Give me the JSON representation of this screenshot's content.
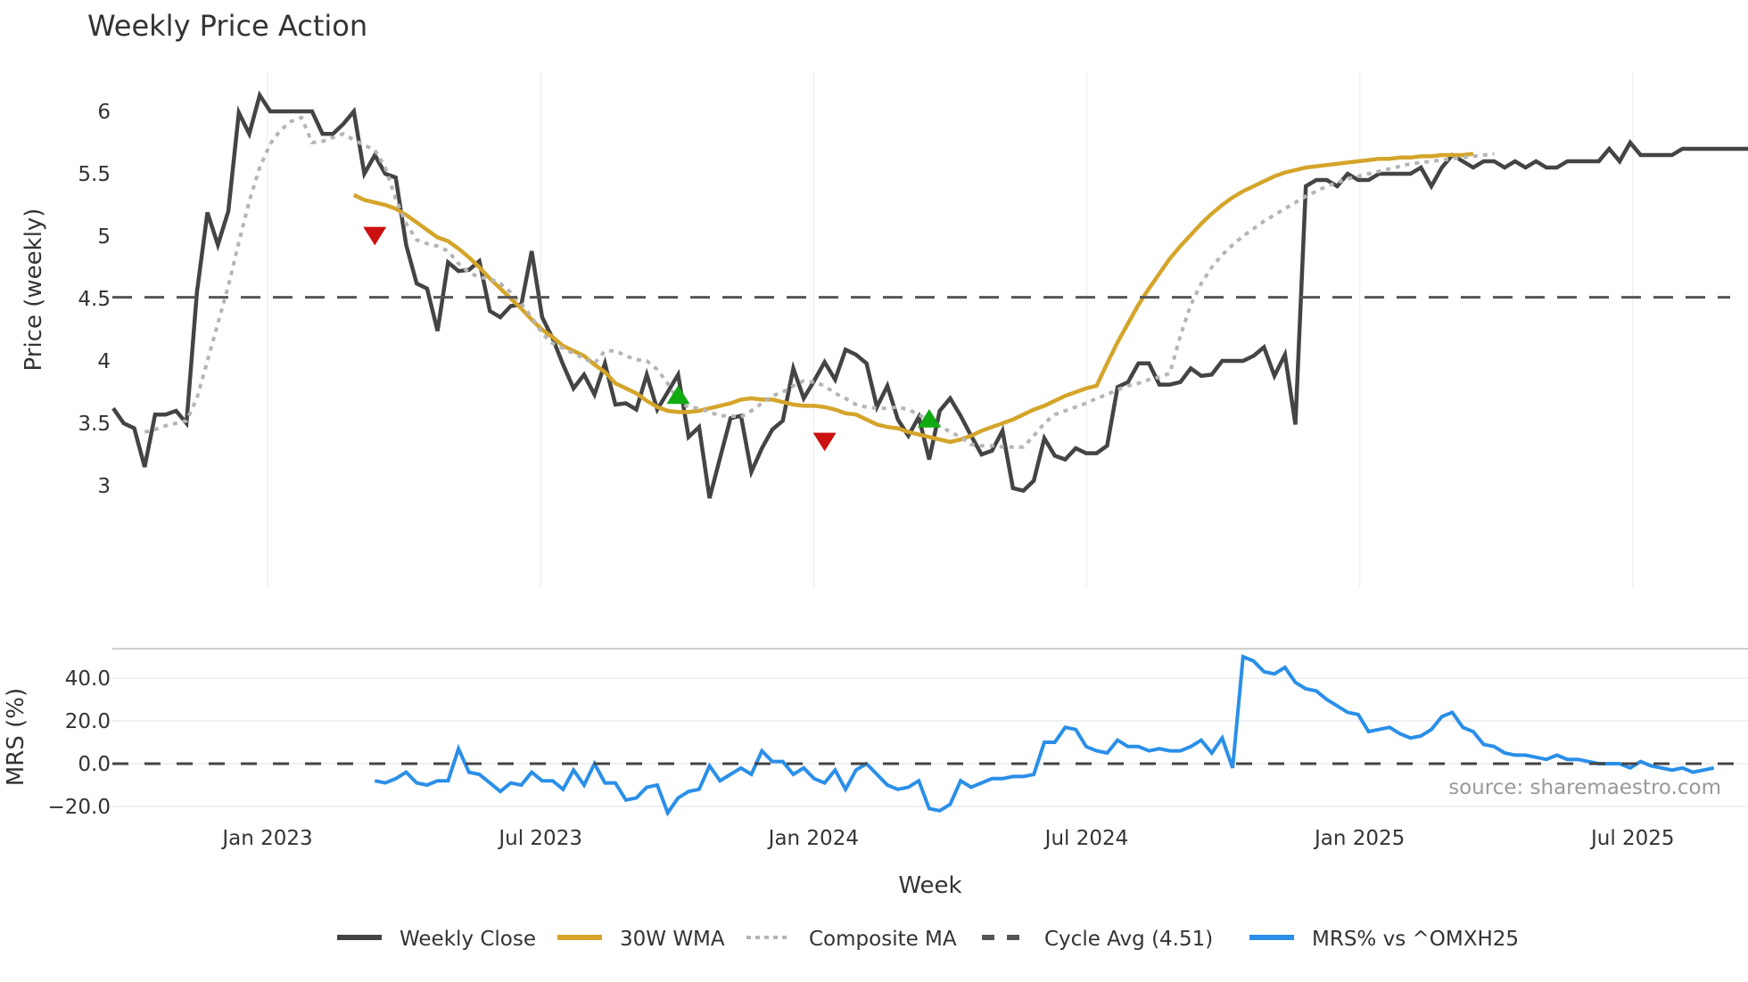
{
  "chart_data": [
    {
      "type": "line",
      "title": "Weekly Price Action",
      "xlabel": "Week",
      "ylabel": "Price (weekly)",
      "ylim": [
        2.72,
        6.3
      ],
      "yticks": [
        3,
        3.5,
        4,
        4.5,
        5,
        5.5,
        6
      ],
      "xticks": [
        "Jan 2023",
        "Jul 2023",
        "Jan 2024",
        "Jul 2024",
        "Jan 2025",
        "Jul 2025"
      ],
      "grid": true,
      "x_start_week_offset_from_jan2023": -14.75,
      "series": [
        {
          "name": "Weekly Close",
          "color": "#444444",
          "style": "solid",
          "values": [
            3.62,
            3.5,
            3.46,
            3.15,
            3.57,
            3.57,
            3.6,
            3.5,
            4.55,
            5.19,
            4.93,
            5.2,
            5.99,
            5.82,
            6.13,
            6.0,
            6.0,
            6.0,
            6.0,
            6.0,
            5.82,
            5.82,
            5.9,
            6.0,
            5.5,
            5.65,
            5.5,
            5.47,
            4.93,
            4.62,
            4.58,
            4.24,
            4.79,
            4.72,
            4.73,
            4.8,
            4.4,
            4.35,
            4.44,
            4.45,
            4.88,
            4.35,
            4.18,
            3.97,
            3.78,
            3.89,
            3.73,
            3.98,
            3.65,
            3.66,
            3.61,
            3.89,
            3.61,
            3.75,
            3.89,
            3.39,
            3.47,
            2.9,
            3.22,
            3.54,
            3.56,
            3.11,
            3.3,
            3.45,
            3.52,
            3.94,
            3.7,
            3.84,
            3.99,
            3.85,
            4.09,
            4.05,
            3.98,
            3.63,
            3.8,
            3.53,
            3.4,
            3.55,
            3.21,
            3.6,
            3.7,
            3.56,
            3.4,
            3.25,
            3.28,
            3.44,
            2.98,
            2.96,
            3.04,
            3.38,
            3.24,
            3.21,
            3.3,
            3.26,
            3.26,
            3.32,
            3.79,
            3.83,
            3.98,
            3.98,
            3.81,
            3.81,
            3.83,
            3.94,
            3.88,
            3.89,
            4.0,
            4.0,
            4.0,
            4.04,
            4.11,
            3.88,
            4.05,
            3.49,
            5.4,
            5.45,
            5.45,
            5.4,
            5.5,
            5.45,
            5.45,
            5.5,
            5.5,
            5.5,
            5.5,
            5.55,
            5.4,
            5.55,
            5.65,
            5.6,
            5.55,
            5.6,
            5.6,
            5.55,
            5.6,
            5.55,
            5.6,
            5.55,
            5.55,
            5.6,
            5.6,
            5.6,
            5.6,
            5.7,
            5.6,
            5.75,
            5.65,
            5.65,
            5.65,
            5.65,
            5.7,
            5.7,
            5.7,
            5.7,
            5.7,
            5.7,
            5.7,
            5.7
          ]
        },
        {
          "name": "30W WMA",
          "color": "#D4A52A",
          "style": "solid",
          "start_index": 23,
          "values": [
            5.33,
            5.29,
            5.27,
            5.25,
            5.22,
            5.17,
            5.11,
            5.05,
            4.99,
            4.96,
            4.9,
            4.83,
            4.75,
            4.66,
            4.58,
            4.5,
            4.42,
            4.33,
            4.25,
            4.19,
            4.12,
            4.08,
            4.04,
            3.97,
            3.91,
            3.82,
            3.78,
            3.74,
            3.68,
            3.63,
            3.6,
            3.59,
            3.59,
            3.6,
            3.62,
            3.64,
            3.66,
            3.69,
            3.7,
            3.69,
            3.69,
            3.67,
            3.65,
            3.64,
            3.64,
            3.63,
            3.61,
            3.58,
            3.57,
            3.53,
            3.49,
            3.47,
            3.46,
            3.43,
            3.41,
            3.39,
            3.37,
            3.35,
            3.37,
            3.4,
            3.44,
            3.47,
            3.5,
            3.53,
            3.57,
            3.61,
            3.64,
            3.68,
            3.72,
            3.75,
            3.78,
            3.8,
            3.98,
            4.15,
            4.3,
            4.45,
            4.58,
            4.7,
            4.82,
            4.92,
            5.01,
            5.1,
            5.18,
            5.25,
            5.31,
            5.36,
            5.4,
            5.44,
            5.48,
            5.51,
            5.53,
            5.55,
            5.56,
            5.57,
            5.58,
            5.59,
            5.6,
            5.61,
            5.62,
            5.62,
            5.63,
            5.63,
            5.64,
            5.64,
            5.65,
            5.65,
            5.65,
            5.66
          ]
        },
        {
          "name": "Composite MA",
          "color": "#b5b5b5",
          "style": "dotted",
          "start_index": 3,
          "values": [
            3.43,
            3.45,
            3.48,
            3.5,
            3.52,
            3.7,
            4.0,
            4.3,
            4.6,
            4.95,
            5.28,
            5.55,
            5.74,
            5.85,
            5.92,
            5.95,
            5.75,
            5.76,
            5.79,
            5.82,
            5.77,
            5.73,
            5.69,
            5.55,
            5.3,
            5.1,
            4.97,
            4.94,
            4.92,
            4.88,
            4.78,
            4.71,
            4.67,
            4.66,
            4.62,
            4.55,
            4.46,
            4.35,
            4.22,
            4.14,
            4.1,
            4.06,
            4.02,
            3.98,
            4.08,
            4.08,
            4.04,
            4.01,
            4.0,
            3.93,
            3.82,
            3.68,
            3.63,
            3.62,
            3.59,
            3.56,
            3.56,
            3.55,
            3.6,
            3.66,
            3.72,
            3.75,
            3.8,
            3.84,
            3.83,
            3.8,
            3.74,
            3.7,
            3.65,
            3.63,
            3.62,
            3.62,
            3.63,
            3.61,
            3.57,
            3.52,
            3.48,
            3.43,
            3.39,
            3.33,
            3.32,
            3.32,
            3.31,
            3.31,
            3.31,
            3.4,
            3.5,
            3.57,
            3.6,
            3.63,
            3.66,
            3.7,
            3.73,
            3.77,
            3.8,
            3.82,
            3.85,
            3.87,
            3.9,
            4.2,
            4.45,
            4.62,
            4.75,
            4.85,
            4.93,
            5.0,
            5.06,
            5.12,
            5.17,
            5.22,
            5.27,
            5.32,
            5.36,
            5.4,
            5.43,
            5.46,
            5.48,
            5.5,
            5.52,
            5.54,
            5.56,
            5.58,
            5.59,
            5.6,
            5.61,
            5.62,
            5.63,
            5.64,
            5.65,
            5.66
          ]
        },
        {
          "name": "Cycle Avg (4.51)",
          "color": "#444444",
          "style": "dashed",
          "value": 4.51
        }
      ],
      "markers": [
        {
          "type": "sell",
          "shape": "triangle-down",
          "color": "#cc1111",
          "week_index": 25,
          "price": 5.0
        },
        {
          "type": "buy",
          "shape": "triangle-up",
          "color": "#11aa11",
          "week_index": 54,
          "price": 3.73
        },
        {
          "type": "sell",
          "shape": "triangle-down",
          "color": "#cc1111",
          "week_index": 68,
          "price": 3.35
        },
        {
          "type": "buy",
          "shape": "triangle-up",
          "color": "#11aa11",
          "week_index": 78,
          "price": 3.54
        }
      ]
    },
    {
      "type": "line",
      "ylabel": "MRS (%)",
      "ylim": [
        -26,
        54
      ],
      "yticks": [
        -20.0,
        0.0,
        20.0,
        40.0
      ],
      "ytick_labels": [
        "−20.0",
        "0.0",
        "20.0",
        "40.0"
      ],
      "series": [
        {
          "name": "MRS% vs ^OMXH25",
          "color": "#2A8FE8",
          "style": "solid",
          "start_index": 25,
          "values": [
            -8,
            -9,
            -7,
            -4,
            -9,
            -10,
            -8,
            -8,
            7,
            -4,
            -5,
            -9,
            -13,
            -9,
            -10,
            -4,
            -8,
            -8,
            -12,
            -3,
            -10,
            0,
            -9,
            -9,
            -17,
            -16,
            -11,
            -10,
            -23,
            -16,
            -13,
            -12,
            -1,
            -8,
            -5,
            -2,
            -5,
            6,
            1,
            1,
            -5,
            -2,
            -7,
            -9,
            -3,
            -12,
            -3,
            0,
            -5,
            -10,
            -12,
            -11,
            -8,
            -21,
            -22,
            -19,
            -8,
            -11,
            -9,
            -7,
            -7,
            -6,
            -6,
            -5,
            10,
            10,
            17,
            16,
            8,
            6,
            5,
            11,
            8,
            8,
            6,
            7,
            6,
            6,
            8,
            11,
            5,
            12,
            -2,
            50,
            48,
            43,
            42,
            45,
            38,
            35,
            34,
            30,
            27,
            24,
            23,
            15,
            16,
            17,
            14,
            12,
            13,
            16,
            22,
            24,
            17,
            15,
            9,
            8,
            5,
            4,
            4,
            3,
            2,
            4,
            2,
            2,
            1,
            0,
            0,
            0,
            -2,
            1,
            -1,
            -2,
            -3,
            -2,
            -4,
            -3,
            -2
          ]
        },
        {
          "name": "zero-line",
          "color": "#444444",
          "style": "dashed",
          "value": 0
        }
      ],
      "annotation": "source: sharemaestro.com"
    }
  ],
  "title": "Weekly Price Action",
  "xlabel": "Week",
  "price_ylabel": "Price (weekly)",
  "mrs_ylabel": "MRS (%)",
  "source": "source: sharemaestro.com",
  "legend": [
    {
      "label": "Weekly Close",
      "color": "#444444",
      "style": "solid"
    },
    {
      "label": "30W WMA",
      "color": "#D4A52A",
      "style": "solid"
    },
    {
      "label": "Composite MA",
      "color": "#b5b5b5",
      "style": "dotted"
    },
    {
      "label": "Cycle Avg (4.51)",
      "color": "#555555",
      "style": "dashed"
    },
    {
      "label": "MRS% vs ^OMXH25",
      "color": "#2A8FE8",
      "style": "solid"
    }
  ]
}
